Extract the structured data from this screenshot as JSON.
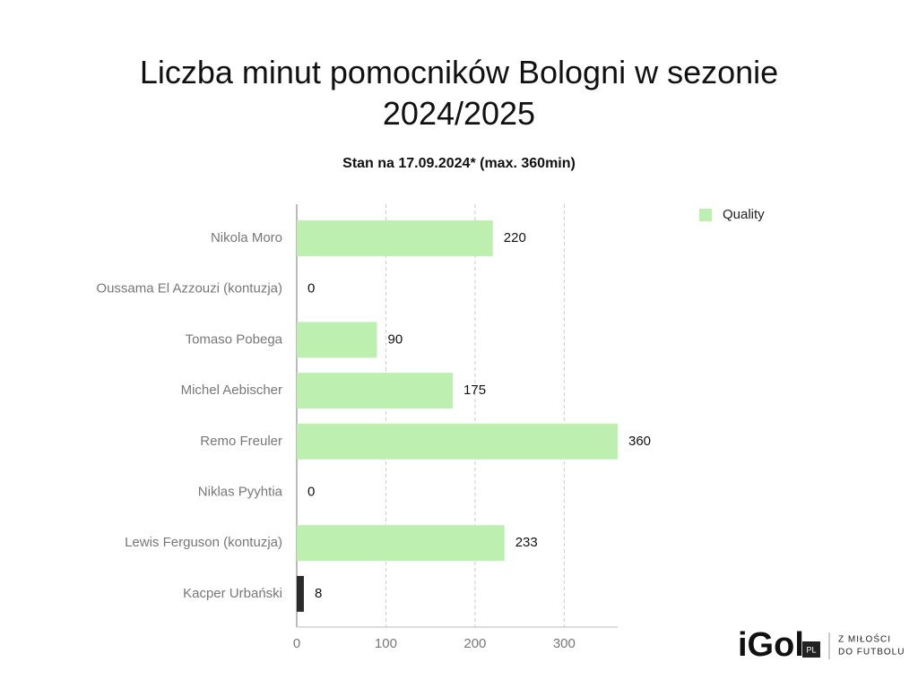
{
  "chart_data": {
    "type": "hbar",
    "title": "Liczba minut pomocników Bologni w sezonie 2024/2025",
    "subtitle": "Stan na 17.09.2024* (max. 360min)",
    "categories": [
      "Nikola Moro",
      "Oussama El Azzouzi (kontuzja)",
      "Tomaso Pobega",
      "Michel Aebischer",
      "Remo Freuler",
      "Niklas Pyyhtia",
      "Lewis Ferguson (kontuzja)",
      "Kacper Urbański"
    ],
    "series": [
      {
        "name": "Quality",
        "color": "#bdf0b0",
        "values": [
          220,
          0,
          90,
          175,
          360,
          0,
          233,
          8
        ]
      }
    ],
    "bar_colors": [
      "#bdf0b0",
      "#bdf0b0",
      "#bdf0b0",
      "#bdf0b0",
      "#bdf0b0",
      "#bdf0b0",
      "#bdf0b0",
      "#2b2b2b"
    ],
    "xlim": [
      0,
      360
    ],
    "xticks": [
      0,
      100,
      200,
      300
    ],
    "grid": true,
    "legend": "top-right"
  },
  "logo": {
    "name": "iGol",
    "badge": "PL",
    "tagline": [
      "Z MIŁOŚCI",
      "DO FUTBOLU"
    ]
  }
}
